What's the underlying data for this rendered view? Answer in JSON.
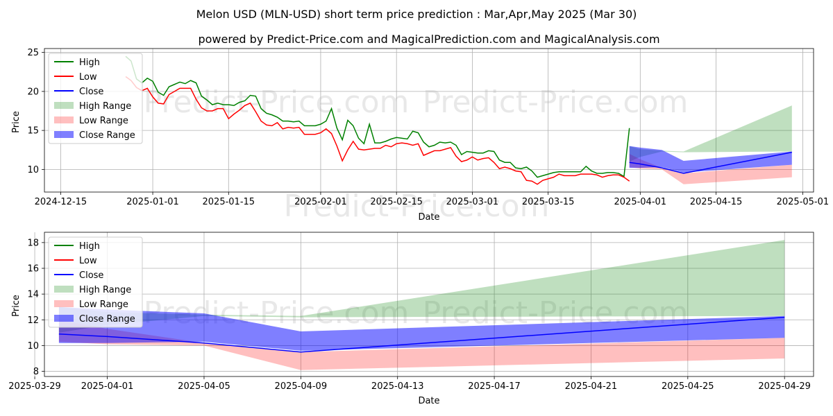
{
  "header": {
    "title": "Melon USD (MLN-USD) short term price prediction : Mar,Apr,May 2025 (Mar 30)",
    "subtitle": "powered by Predict-Price.com and MagicalPrediction.com and MagicalAnalysis.com"
  },
  "watermark": "Predict-Price.com",
  "colors": {
    "high": "#008000",
    "low": "#ff0000",
    "close": "#0000ff",
    "high_range": "#99cc99",
    "low_range": "#ff9999",
    "close_range": "#5555ff"
  },
  "chart_data": [
    {
      "type": "line",
      "title": "",
      "xlabel": "Date",
      "ylabel": "Price",
      "xlim": [
        "2024-12-12",
        "2025-05-03"
      ],
      "ylim": [
        7.1,
        25.5
      ],
      "yticks": [
        10,
        15,
        20,
        25
      ],
      "xticks": [
        "2024-12-15",
        "2025-01-01",
        "2025-01-15",
        "2025-02-01",
        "2025-02-15",
        "2025-03-01",
        "2025-03-15",
        "2025-04-01",
        "2025-04-15",
        "2025-05-01"
      ],
      "legend": [
        "High",
        "Low",
        "Close",
        "High Range",
        "Low Range",
        "Close Range"
      ],
      "legend_position": "top-left",
      "grid": true,
      "history": {
        "dates": [
          "2024-12-27",
          "2024-12-28",
          "2024-12-29",
          "2024-12-30",
          "2024-12-31",
          "2025-01-01",
          "2025-01-02",
          "2025-01-03",
          "2025-01-04",
          "2025-01-05",
          "2025-01-06",
          "2025-01-07",
          "2025-01-08",
          "2025-01-09",
          "2025-01-10",
          "2025-01-11",
          "2025-01-12",
          "2025-01-13",
          "2025-01-14",
          "2025-01-15",
          "2025-01-16",
          "2025-01-17",
          "2025-01-18",
          "2025-01-19",
          "2025-01-20",
          "2025-01-21",
          "2025-01-22",
          "2025-01-23",
          "2025-01-24",
          "2025-01-25",
          "2025-01-26",
          "2025-01-27",
          "2025-01-28",
          "2025-01-29",
          "2025-01-30",
          "2025-01-31",
          "2025-02-01",
          "2025-02-02",
          "2025-02-03",
          "2025-02-04",
          "2025-02-05",
          "2025-02-06",
          "2025-02-07",
          "2025-02-08",
          "2025-02-09",
          "2025-02-10",
          "2025-02-11",
          "2025-02-12",
          "2025-02-13",
          "2025-02-14",
          "2025-02-15",
          "2025-02-16",
          "2025-02-17",
          "2025-02-18",
          "2025-02-19",
          "2025-02-20",
          "2025-02-21",
          "2025-02-22",
          "2025-02-23",
          "2025-02-24",
          "2025-02-25",
          "2025-02-26",
          "2025-02-27",
          "2025-02-28",
          "2025-03-01",
          "2025-03-02",
          "2025-03-03",
          "2025-03-04",
          "2025-03-05",
          "2025-03-06",
          "2025-03-07",
          "2025-03-08",
          "2025-03-09",
          "2025-03-10",
          "2025-03-11",
          "2025-03-12",
          "2025-03-13",
          "2025-03-14",
          "2025-03-15",
          "2025-03-16",
          "2025-03-17",
          "2025-03-18",
          "2025-03-19",
          "2025-03-20",
          "2025-03-21",
          "2025-03-22",
          "2025-03-23",
          "2025-03-24",
          "2025-03-25",
          "2025-03-26",
          "2025-03-27",
          "2025-03-28",
          "2025-03-29",
          "2025-03-30"
        ],
        "high": [
          24.5,
          23.9,
          21.6,
          21.1,
          21.7,
          21.3,
          19.9,
          19.5,
          20.6,
          20.9,
          21.2,
          21.0,
          21.4,
          21.1,
          19.4,
          18.9,
          18.3,
          18.5,
          18.3,
          18.3,
          18.2,
          18.6,
          18.8,
          19.5,
          19.4,
          17.8,
          17.2,
          17.0,
          16.7,
          16.2,
          16.2,
          16.1,
          16.2,
          15.6,
          15.6,
          15.6,
          15.8,
          16.2,
          17.8,
          15.3,
          13.8,
          16.3,
          15.6,
          14.0,
          13.3,
          15.8,
          13.4,
          13.4,
          13.6,
          13.9,
          14.1,
          14.0,
          13.9,
          14.9,
          14.7,
          13.5,
          12.9,
          13.1,
          13.5,
          13.4,
          13.5,
          13.1,
          11.9,
          12.3,
          12.2,
          12.1,
          12.1,
          12.4,
          12.3,
          11.2,
          10.9,
          10.9,
          10.2,
          10.1,
          10.3,
          9.8,
          9.0,
          9.2,
          9.4,
          9.6,
          9.7,
          9.7,
          9.7,
          9.7,
          9.7,
          10.4,
          9.8,
          9.5,
          9.5,
          9.6,
          9.6,
          9.5,
          9.1,
          15.3
        ],
        "low": [
          21.9,
          21.4,
          20.5,
          20.1,
          20.4,
          19.3,
          18.5,
          18.4,
          19.6,
          20.0,
          20.4,
          20.4,
          20.4,
          19.0,
          17.9,
          17.5,
          17.5,
          17.8,
          17.8,
          16.5,
          17.1,
          17.6,
          18.2,
          18.5,
          17.4,
          16.2,
          15.7,
          15.6,
          16.0,
          15.2,
          15.4,
          15.3,
          15.4,
          14.5,
          14.5,
          14.5,
          14.7,
          15.2,
          14.6,
          13.0,
          11.1,
          12.5,
          13.6,
          12.6,
          12.5,
          12.6,
          12.7,
          12.7,
          13.1,
          12.9,
          13.3,
          13.4,
          13.3,
          13.1,
          13.3,
          11.8,
          12.1,
          12.4,
          12.4,
          12.6,
          12.8,
          11.7,
          11.0,
          11.2,
          11.6,
          11.2,
          11.4,
          11.5,
          10.9,
          10.1,
          10.3,
          10.1,
          9.8,
          9.7,
          8.6,
          8.5,
          8.1,
          8.6,
          8.8,
          9.0,
          9.4,
          9.2,
          9.2,
          9.2,
          9.4,
          9.4,
          9.4,
          9.3,
          9.0,
          9.2,
          9.3,
          9.3,
          9.0,
          8.5
        ]
      },
      "forecast": {
        "dates": [
          "2025-03-30",
          "2025-04-01",
          "2025-04-05",
          "2025-04-09",
          "2025-04-29"
        ],
        "close": [
          10.9,
          10.7,
          10.2,
          9.5,
          12.2
        ],
        "high_range_low": [
          11.0,
          11.6,
          12.3,
          12.2,
          12.3
        ],
        "high_range_high": [
          13.0,
          12.6,
          12.4,
          12.3,
          18.2
        ],
        "low_range_low": [
          10.3,
          10.1,
          10.0,
          8.1,
          9.0
        ],
        "low_range_high": [
          12.0,
          11.3,
          10.2,
          9.5,
          10.6
        ],
        "close_range_low": [
          10.2,
          10.2,
          10.3,
          9.6,
          10.6
        ],
        "close_range_high": [
          13.0,
          12.8,
          12.5,
          11.1,
          12.3
        ]
      }
    },
    {
      "type": "line",
      "title": "",
      "xlabel": "Date",
      "ylabel": "Price",
      "xlim": [
        "2025-03-29.4",
        "2025-04-30.2"
      ],
      "ylim": [
        7.6,
        18.8
      ],
      "yticks": [
        8,
        10,
        12,
        14,
        16,
        18
      ],
      "xticks": [
        "2025-03-29",
        "2025-04-01",
        "2025-04-05",
        "2025-04-09",
        "2025-04-13",
        "2025-04-17",
        "2025-04-21",
        "2025-04-25",
        "2025-04-29"
      ],
      "legend": [
        "High",
        "Low",
        "Close",
        "High Range",
        "Low Range",
        "Close Range"
      ],
      "legend_position": "top-left",
      "grid": true
    }
  ]
}
